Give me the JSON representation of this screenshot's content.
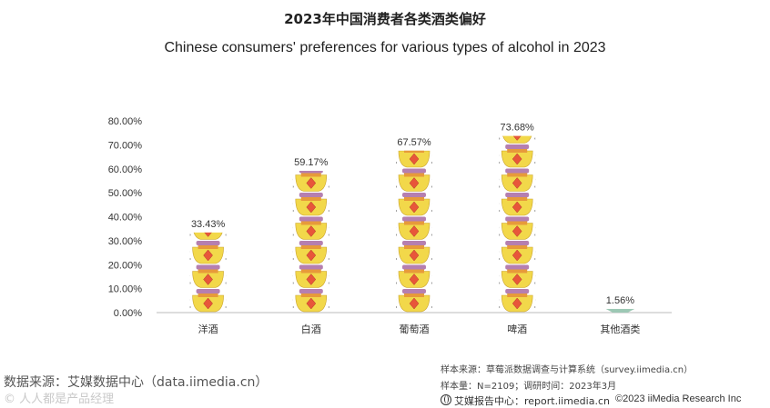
{
  "header": {
    "title_cn": "2023年中国消费者各类酒类偏好",
    "title_en": "Chinese consumers' preferences for various types of alcohol in 2023"
  },
  "colors": {
    "cup_body": "#f2d84a",
    "cup_rim": "#b57fb0",
    "cup_mid": "#e79a3a",
    "diamond": "#e8563a",
    "axis": "#bbbbbb",
    "last_bar": "#9cc8b4"
  },
  "chart_data": {
    "type": "bar",
    "categories": [
      "洋酒",
      "白酒",
      "葡萄酒",
      "啤酒",
      "其他酒类"
    ],
    "values": [
      33.43,
      59.17,
      67.57,
      73.68,
      1.56
    ],
    "data_labels": [
      "33.43%",
      "59.17%",
      "67.57%",
      "73.68%",
      "1.56%"
    ],
    "y_ticks": [
      "0.00%",
      "10.00%",
      "20.00%",
      "30.00%",
      "40.00%",
      "50.00%",
      "60.00%",
      "70.00%",
      "80.00%"
    ],
    "ylim": [
      0,
      80
    ],
    "grid": false
  },
  "footer": {
    "source": "数据来源：艾媒数据中心（data.iimedia.cn）",
    "watermark": "© 人人都是产品经理",
    "sample_source": "样本来源：草莓派数据调查与计算系统（survey.iimedia.cn）",
    "sample_size": "样本量：N=2109；调研时间：2023年3月",
    "report_center": "艾媒报告中心：report.iimedia.cn",
    "copyright": "©2023  iiMedia Research  Inc"
  }
}
